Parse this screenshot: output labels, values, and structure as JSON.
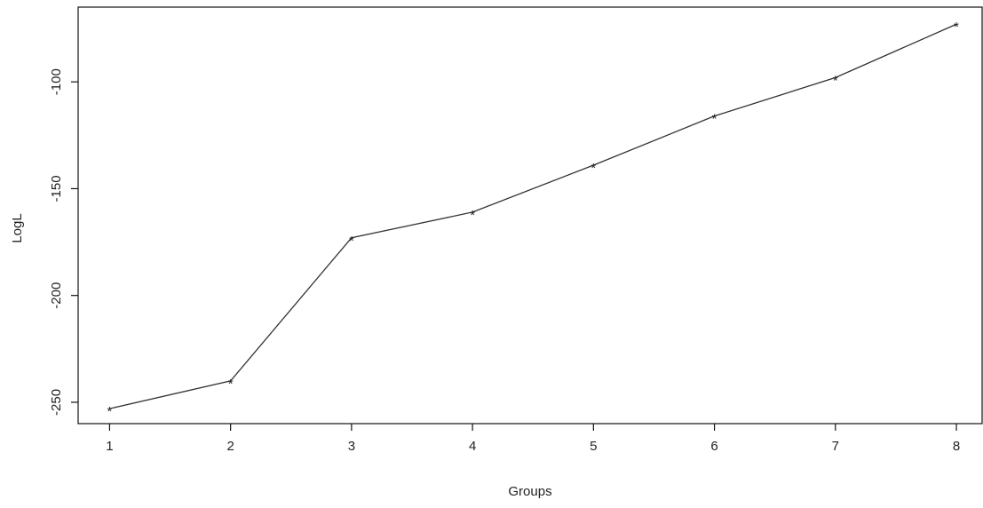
{
  "chart_data": {
    "type": "line",
    "title": "",
    "xlabel": "Groups",
    "ylabel": "LogL",
    "x": [
      1,
      2,
      3,
      4,
      5,
      6,
      7,
      8
    ],
    "series": [
      {
        "values": [
          -253,
          -240,
          -173,
          -161,
          -139,
          -116,
          -98,
          -73
        ],
        "marker": "*"
      }
    ],
    "xticks": [
      "1",
      "2",
      "3",
      "4",
      "5",
      "6",
      "7",
      "8"
    ],
    "yticks": [
      -250,
      -200,
      -150,
      -100
    ],
    "ytick_labels": [
      "-250",
      "-200",
      "-150",
      "-100"
    ],
    "xlim": [
      0.74,
      8.22
    ],
    "ylim": [
      -260,
      -65
    ],
    "grid": false,
    "legend": "none",
    "colors": {
      "line": "#333333",
      "axis": "#111111",
      "text": "#222222",
      "background": "#ffffff"
    }
  }
}
